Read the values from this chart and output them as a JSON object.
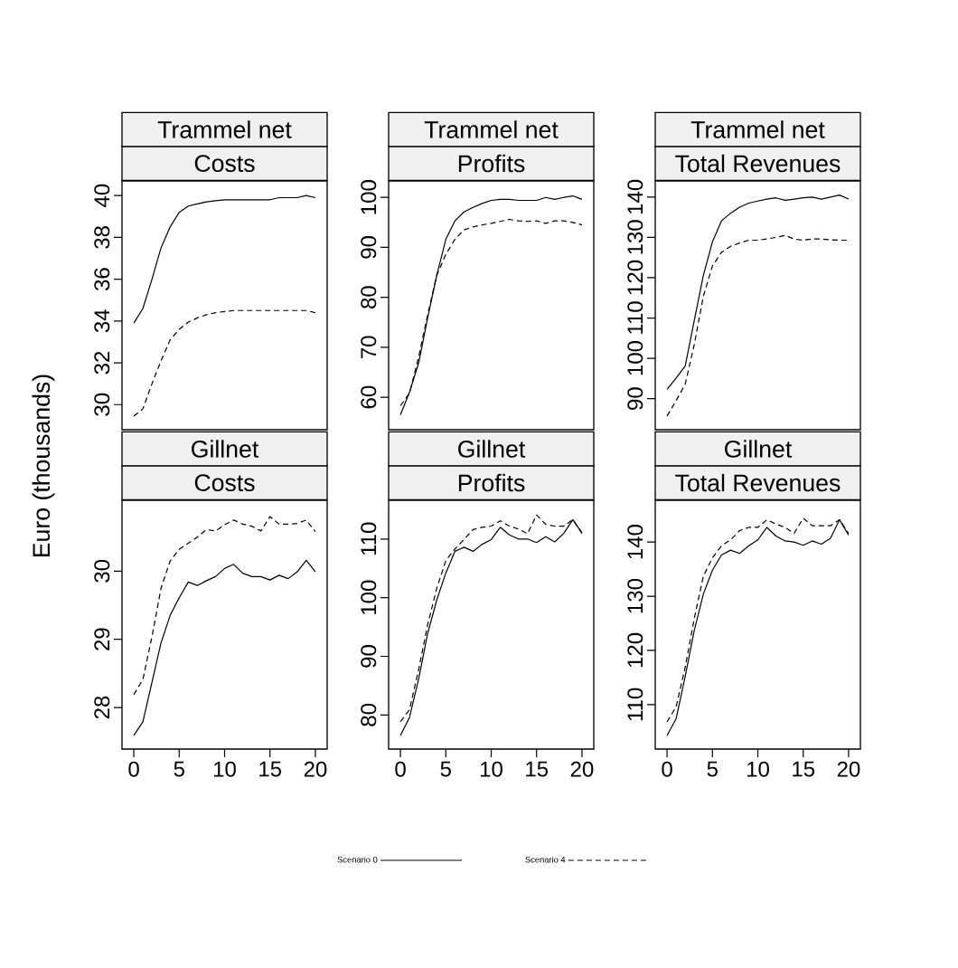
{
  "chart_data": [
    {
      "type": "line",
      "title": "Trammel net",
      "subtitle": "Costs",
      "ylabel": "Euro (thousands)",
      "legend": "bottom",
      "tick_labels": "y",
      "x": [
        0,
        1,
        2,
        3,
        4,
        5,
        6,
        7,
        8,
        9,
        10,
        11,
        12,
        13,
        14,
        15,
        16,
        17,
        18,
        19,
        20
      ],
      "xlim": [
        -1.3,
        21.3
      ],
      "xticks": [
        0,
        5,
        10,
        15,
        20
      ],
      "ylim": [
        28.8,
        40.7
      ],
      "yticks": [
        30,
        32,
        34,
        36,
        38,
        40
      ],
      "series": [
        {
          "name": "Scenario 0",
          "color": "#000000",
          "line_style": "solid",
          "values": [
            33.9,
            34.6,
            36.0,
            37.5,
            38.5,
            39.2,
            39.5,
            39.6,
            39.7,
            39.75,
            39.8,
            39.8,
            39.8,
            39.8,
            39.8,
            39.8,
            39.9,
            39.9,
            39.9,
            40.0,
            39.9
          ]
        },
        {
          "name": "Scenario 4",
          "color": "#000000",
          "line_style": "dashed",
          "values": [
            29.45,
            29.8,
            31.0,
            32.1,
            33.1,
            33.6,
            33.95,
            34.15,
            34.3,
            34.4,
            34.45,
            34.5,
            34.5,
            34.5,
            34.5,
            34.5,
            34.5,
            34.5,
            34.5,
            34.5,
            34.4
          ]
        }
      ]
    },
    {
      "type": "line",
      "title": "Trammel net",
      "subtitle": "Profits",
      "tick_labels": "y",
      "x": [
        0,
        1,
        2,
        3,
        4,
        5,
        6,
        7,
        8,
        9,
        10,
        11,
        12,
        13,
        14,
        15,
        16,
        17,
        18,
        19,
        20
      ],
      "xlim": [
        -1.3,
        21.3
      ],
      "xticks": [
        0,
        5,
        10,
        15,
        20
      ],
      "ylim": [
        53.5,
        103.3
      ],
      "yticks": [
        60,
        70,
        80,
        90,
        100
      ],
      "series": [
        {
          "color": "#000000",
          "line_style": "solid",
          "values": [
            56.5,
            61.0,
            66.8,
            75.9,
            84.4,
            91.6,
            95.3,
            97.1,
            98.0,
            98.8,
            99.4,
            99.6,
            99.6,
            99.4,
            99.4,
            99.4,
            100.0,
            99.6,
            100.0,
            100.3,
            99.6
          ]
        },
        {
          "color": "#000000",
          "line_style": "dashed",
          "values": [
            58.3,
            60.8,
            68.0,
            76.5,
            84.4,
            88.6,
            91.6,
            93.5,
            94.1,
            94.5,
            94.8,
            95.2,
            95.6,
            95.3,
            95.2,
            95.3,
            94.8,
            95.3,
            95.3,
            95.0,
            94.5
          ]
        }
      ]
    },
    {
      "type": "line",
      "title": "Trammel net",
      "subtitle": "Total Revenues",
      "tick_labels": "y",
      "x": [
        0,
        1,
        2,
        3,
        4,
        5,
        6,
        7,
        8,
        9,
        10,
        11,
        12,
        13,
        14,
        15,
        16,
        17,
        18,
        19,
        20
      ],
      "xlim": [
        -1.3,
        21.3
      ],
      "xticks": [
        0,
        5,
        10,
        15,
        20
      ],
      "ylim": [
        82.3,
        144.0
      ],
      "yticks": [
        90,
        100,
        110,
        120,
        130,
        140
      ],
      "series": [
        {
          "color": "#000000",
          "line_style": "solid",
          "values": [
            92.3,
            95.1,
            98.1,
            109.4,
            120.6,
            128.9,
            134.1,
            136.0,
            137.5,
            138.5,
            139.0,
            139.5,
            139.8,
            139.2,
            139.5,
            139.8,
            140.0,
            139.5,
            140.0,
            140.5,
            139.5
          ]
        },
        {
          "color": "#000000",
          "line_style": "dashed",
          "values": [
            85.7,
            89.5,
            93.6,
            103.4,
            115.4,
            122.9,
            126.3,
            127.8,
            128.6,
            129.3,
            129.3,
            129.6,
            130.0,
            130.5,
            129.6,
            129.3,
            129.6,
            129.6,
            129.4,
            129.3,
            129.3
          ]
        }
      ]
    },
    {
      "type": "line",
      "title": "Gillnet",
      "subtitle": "Costs",
      "x": [
        0,
        1,
        2,
        3,
        4,
        5,
        6,
        7,
        8,
        9,
        10,
        11,
        12,
        13,
        14,
        15,
        16,
        17,
        18,
        19,
        20
      ],
      "xlim": [
        -1.3,
        21.3
      ],
      "xticks": [
        0,
        5,
        10,
        15,
        20
      ],
      "ylim": [
        27.39,
        31.04
      ],
      "yticks": [
        28,
        29,
        30
      ],
      "series": [
        {
          "color": "#000000",
          "line_style": "solid",
          "values": [
            27.59,
            27.79,
            28.37,
            28.95,
            29.35,
            29.61,
            29.84,
            29.79,
            29.86,
            29.92,
            30.04,
            30.1,
            29.97,
            29.92,
            29.92,
            29.87,
            29.94,
            29.89,
            29.99,
            30.16,
            29.99
          ]
        },
        {
          "color": "#000000",
          "line_style": "dashed",
          "values": [
            28.19,
            28.41,
            29.04,
            29.75,
            30.15,
            30.32,
            30.41,
            30.5,
            30.61,
            30.59,
            30.68,
            30.75,
            30.69,
            30.66,
            30.59,
            30.8,
            30.69,
            30.69,
            30.7,
            30.75,
            30.58
          ]
        }
      ]
    },
    {
      "type": "line",
      "title": "Gillnet",
      "subtitle": "Profits",
      "x": [
        0,
        1,
        2,
        3,
        4,
        5,
        6,
        7,
        8,
        9,
        10,
        11,
        12,
        13,
        14,
        15,
        16,
        17,
        18,
        19,
        20
      ],
      "xlim": [
        -1.3,
        21.3
      ],
      "xticks": [
        0,
        5,
        10,
        15,
        20
      ],
      "ylim": [
        74.2,
        116.6
      ],
      "yticks": [
        80,
        90,
        100,
        110
      ],
      "series": [
        {
          "color": "#000000",
          "line_style": "solid",
          "values": [
            76.5,
            79.6,
            86.1,
            93.9,
            99.6,
            104.2,
            107.9,
            108.6,
            107.9,
            109.1,
            109.9,
            112.0,
            110.7,
            110.0,
            110.0,
            109.4,
            110.4,
            109.5,
            111.0,
            113.3,
            111.0
          ]
        },
        {
          "color": "#000000",
          "line_style": "dashed",
          "values": [
            78.9,
            80.9,
            87.7,
            95.4,
            101.6,
            106.3,
            108.3,
            109.9,
            111.6,
            112.0,
            112.2,
            113.1,
            112.2,
            111.7,
            110.9,
            114.1,
            112.5,
            112.2,
            112.2,
            113.3,
            111.0
          ]
        }
      ]
    },
    {
      "type": "line",
      "title": "Gillnet",
      "subtitle": "Total Revenues",
      "x": [
        0,
        1,
        2,
        3,
        4,
        5,
        6,
        7,
        8,
        9,
        10,
        11,
        12,
        13,
        14,
        15,
        16,
        17,
        18,
        19,
        20
      ],
      "xlim": [
        -1.3,
        21.3
      ],
      "xticks": [
        0,
        5,
        10,
        15,
        20
      ],
      "ylim": [
        101.8,
        147.7
      ],
      "yticks": [
        110,
        120,
        130,
        140
      ],
      "series": [
        {
          "color": "#000000",
          "line_style": "solid",
          "values": [
            104.3,
            107.4,
            115.2,
            123.7,
            130.4,
            134.8,
            137.6,
            138.5,
            137.9,
            139.3,
            140.4,
            142.7,
            141.1,
            140.2,
            140.0,
            139.4,
            140.2,
            139.6,
            140.7,
            144.1,
            141.3
          ]
        },
        {
          "color": "#000000",
          "line_style": "dashed",
          "values": [
            106.8,
            109.6,
            116.9,
            125.9,
            133.7,
            137.1,
            139.3,
            140.4,
            142.1,
            142.7,
            142.7,
            144.1,
            143.3,
            142.7,
            141.6,
            144.4,
            143.0,
            143.0,
            143.0,
            144.1,
            141.6
          ]
        }
      ]
    }
  ]
}
